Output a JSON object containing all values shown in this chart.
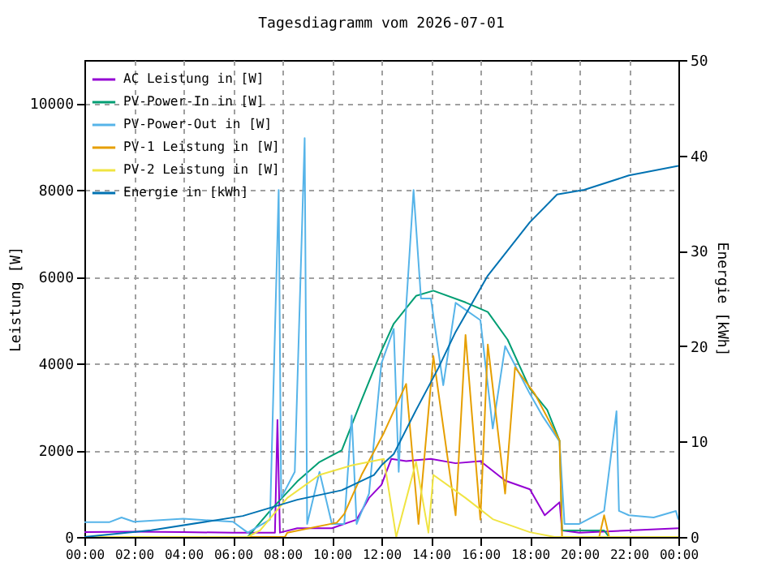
{
  "chart_data": {
    "type": "line",
    "title": "Tagesdiagramm vom 2026-07-01",
    "ylabel": "Leistung [W]",
    "y2label": "Energie [kWh]",
    "xlim": [
      0,
      24
    ],
    "xticks": [
      {
        "value": 0,
        "label": "00:00"
      },
      {
        "value": 2,
        "label": "02:00"
      },
      {
        "value": 4,
        "label": "04:00"
      },
      {
        "value": 6,
        "label": "06:00"
      },
      {
        "value": 8,
        "label": "08:00"
      },
      {
        "value": 10,
        "label": "10:00"
      },
      {
        "value": 12,
        "label": "12:00"
      },
      {
        "value": 14,
        "label": "14:00"
      },
      {
        "value": 16,
        "label": "16:00"
      },
      {
        "value": 18,
        "label": "18:00"
      },
      {
        "value": 20,
        "label": "20:00"
      },
      {
        "value": 22,
        "label": "22:00"
      },
      {
        "value": 24,
        "label": "00:00"
      }
    ],
    "ylim": [
      0,
      11000
    ],
    "yticks": [
      0,
      2000,
      4000,
      6000,
      8000,
      10000
    ],
    "y2lim": [
      0,
      50
    ],
    "y2ticks": [
      0,
      10,
      20,
      30,
      40,
      50
    ],
    "grid": true,
    "legend": "top left",
    "series": [
      {
        "name": "AC Leistung in [W]",
        "color": "#9400d3",
        "x": [
          0,
          2,
          4,
          6,
          7.7,
          7.8,
          7.9,
          8.6,
          10,
          11,
          11.5,
          12,
          12.4,
          13,
          14,
          15,
          16,
          17,
          18,
          18.6,
          19.2,
          19.3,
          20,
          22,
          24
        ],
        "values": [
          110,
          120,
          110,
          100,
          100,
          2700,
          100,
          200,
          200,
          400,
          900,
          1200,
          1800,
          1750,
          1800,
          1700,
          1750,
          1300,
          1100,
          500,
          800,
          150,
          100,
          150,
          200
        ]
      },
      {
        "name": "PV-Power-In in [W]",
        "color": "#009e73",
        "x": [
          0,
          6.5,
          6.6,
          7.5,
          8.6,
          9.5,
          10.4,
          11.2,
          12,
          12.5,
          13.4,
          14.1,
          15.4,
          16.3,
          17.1,
          18,
          18.7,
          19.2,
          19.3,
          20,
          21,
          21.2,
          24
        ],
        "values": [
          0,
          0,
          0,
          600,
          1280,
          1730,
          2000,
          3160,
          4290,
          4920,
          5560,
          5680,
          5410,
          5190,
          4550,
          3420,
          2930,
          2220,
          150,
          150,
          150,
          0,
          0
        ]
      },
      {
        "name": "PV-Power-Out in [W]",
        "color": "#56b4e9",
        "x": [
          0,
          1,
          1.5,
          2,
          4,
          6,
          6.6,
          7.5,
          7.85,
          7.95,
          8.5,
          8.9,
          9,
          9.5,
          10,
          10.5,
          10.8,
          11,
          11.5,
          12,
          12.5,
          12.7,
          13,
          13.3,
          13.6,
          14,
          14.5,
          15,
          16,
          16.5,
          17,
          18,
          18.5,
          19.2,
          19.4,
          20,
          21,
          21.5,
          21.6,
          22,
          23,
          23.9,
          24
        ],
        "values": [
          340,
          340,
          450,
          350,
          420,
          350,
          100,
          400,
          8000,
          900,
          1500,
          9200,
          300,
          1500,
          300,
          300,
          2800,
          300,
          1000,
          4000,
          4800,
          1500,
          5300,
          8000,
          5500,
          5500,
          3500,
          5400,
          5000,
          2500,
          4400,
          3300,
          2800,
          2200,
          300,
          300,
          600,
          2900,
          600,
          500,
          450,
          600,
          400
        ]
      },
      {
        "name": "PV-1 Leistung in [W]",
        "color": "#e69f00",
        "x": [
          0,
          8.1,
          8.2,
          10.2,
          10.5,
          11.2,
          12.1,
          13,
          13.5,
          14.1,
          15,
          15.4,
          16,
          16.3,
          17,
          17.4,
          18.2,
          19.2,
          19.3,
          20.8,
          21,
          21.2,
          24
        ],
        "values": [
          0,
          0,
          100,
          330,
          530,
          1430,
          2400,
          3530,
          300,
          4170,
          500,
          4660,
          400,
          4440,
          1000,
          3910,
          3300,
          2220,
          0,
          0,
          500,
          0,
          0
        ]
      },
      {
        "name": "PV-2 Leistung in [W]",
        "color": "#f0e442",
        "x": [
          0,
          6.6,
          7.1,
          8.2,
          9.5,
          10.8,
          12.1,
          12.6,
          13.4,
          13.9,
          14.1,
          15.4,
          16.5,
          18,
          19,
          24
        ],
        "values": [
          0,
          0,
          150,
          900,
          1430,
          1650,
          1800,
          0,
          1730,
          100,
          1430,
          900,
          410,
          110,
          0,
          0
        ]
      },
      {
        "name": "Energie in [kWh]",
        "color": "#0072b2",
        "axis": "y2",
        "x": [
          0,
          2.7,
          6.4,
          8.6,
          10.4,
          11.7,
          12,
          12.5,
          13.4,
          14.3,
          15,
          16.3,
          18,
          19.1,
          20.2,
          22,
          24
        ],
        "values": [
          0,
          0.7,
          2.2,
          3.9,
          4.9,
          6.5,
          7.5,
          8.7,
          13.3,
          17.7,
          21.5,
          27.4,
          33,
          35.9,
          36.4,
          37.9,
          38.9
        ]
      }
    ]
  }
}
